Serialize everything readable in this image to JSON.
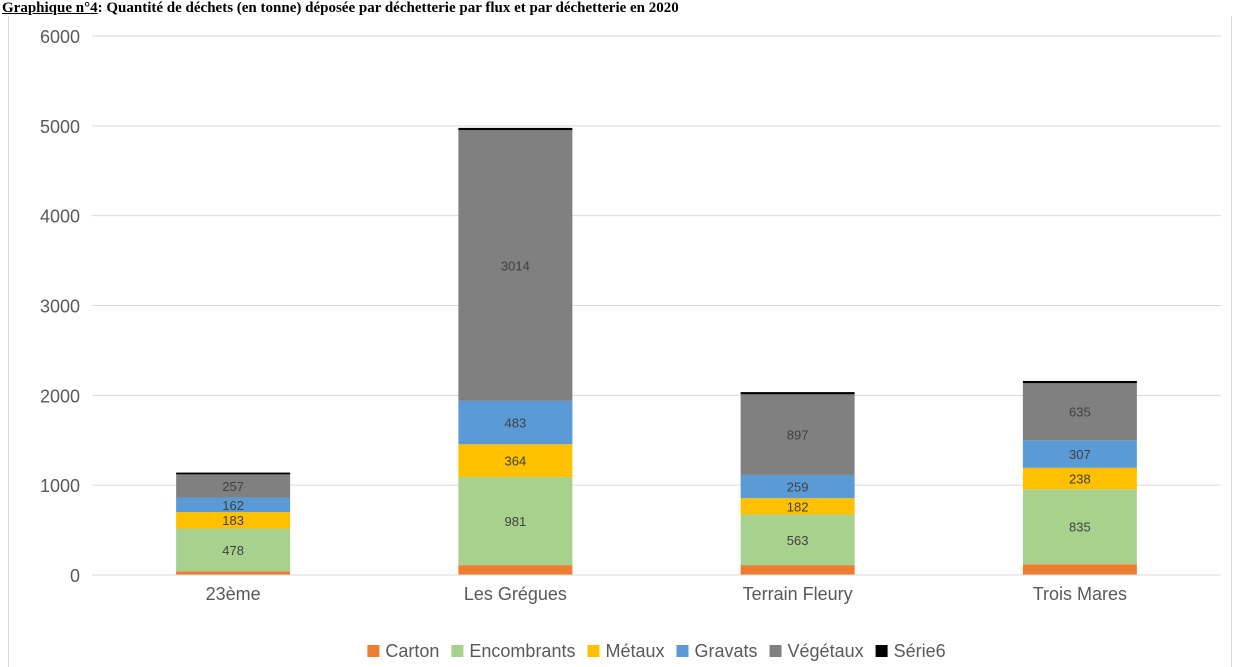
{
  "title": {
    "label": "Graphique n°4",
    "text": ": Quantité de déchets (en tonne) déposée par déchetterie par flux et par déchetterie en 2020"
  },
  "chart_data": {
    "type": "bar",
    "stacked": true,
    "categories": [
      "23ème",
      "Les Grégues",
      "Terrain Fleury",
      "Trois Mares"
    ],
    "series": [
      {
        "name": "Carton",
        "color": "#ED7D31",
        "values": [
          40,
          110,
          110,
          120
        ],
        "labels": [
          "",
          "",
          "",
          ""
        ]
      },
      {
        "name": "Encombrants",
        "color": "#A9D18E",
        "values": [
          478,
          981,
          563,
          835
        ],
        "labels": [
          "478",
          "981",
          "563",
          "835"
        ]
      },
      {
        "name": "Métaux",
        "color": "#FFC000",
        "values": [
          183,
          364,
          182,
          238
        ],
        "labels": [
          "183",
          "364",
          "182",
          "238"
        ]
      },
      {
        "name": "Gravats",
        "color": "#5B9BD5",
        "values": [
          162,
          483,
          259,
          307
        ],
        "labels": [
          "162",
          "483",
          "259",
          "307"
        ]
      },
      {
        "name": "Végétaux",
        "color": "#808080",
        "values": [
          257,
          3014,
          897,
          635
        ],
        "labels": [
          "257",
          "3014",
          "897",
          "635"
        ]
      },
      {
        "name": "Série6",
        "color": "#000000",
        "values": [
          20,
          25,
          25,
          25
        ],
        "labels": [
          "",
          "",
          "",
          ""
        ]
      }
    ],
    "yticks": [
      0,
      1000,
      2000,
      3000,
      4000,
      5000,
      6000
    ],
    "ylim": [
      0,
      6000
    ],
    "grid": true,
    "legend": "bottom"
  }
}
